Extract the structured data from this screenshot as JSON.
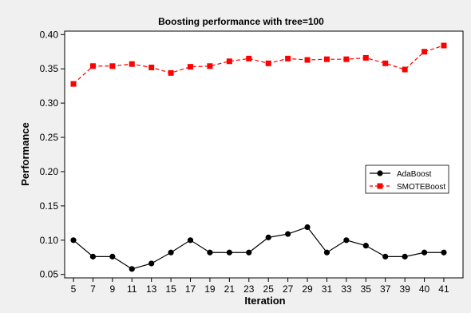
{
  "chart_data": {
    "type": "line",
    "title": "Boosting performance with tree=100",
    "xlabel": "Iteration",
    "ylabel": "Performance",
    "categories": [
      "5",
      "7",
      "9",
      "11",
      "13",
      "15",
      "17",
      "19",
      "21",
      "23",
      "25",
      "27",
      "29",
      "31",
      "33",
      "35",
      "37",
      "39",
      "40",
      "41"
    ],
    "ylim": [
      0.045,
      0.405
    ],
    "yticks": [
      "0.05",
      "0.10",
      "0.15",
      "0.20",
      "0.25",
      "0.30",
      "0.35",
      "0.40"
    ],
    "grid": false,
    "legend_position": "right",
    "series": [
      {
        "name": "AdaBoost",
        "color": "#000000",
        "marker": "circle",
        "line_style": "solid",
        "values": [
          0.1,
          0.076,
          0.076,
          0.058,
          0.066,
          0.082,
          0.1,
          0.082,
          0.082,
          0.082,
          0.104,
          0.109,
          0.119,
          0.082,
          0.1,
          0.092,
          0.076,
          0.076,
          0.082,
          0.082
        ]
      },
      {
        "name": "SMOTEBoost",
        "color": "#ff0000",
        "marker": "square",
        "line_style": "dashed",
        "values": [
          0.328,
          0.354,
          0.354,
          0.357,
          0.352,
          0.344,
          0.353,
          0.354,
          0.361,
          0.365,
          0.358,
          0.365,
          0.363,
          0.364,
          0.364,
          0.366,
          0.358,
          0.349,
          0.375,
          0.384
        ]
      }
    ]
  }
}
